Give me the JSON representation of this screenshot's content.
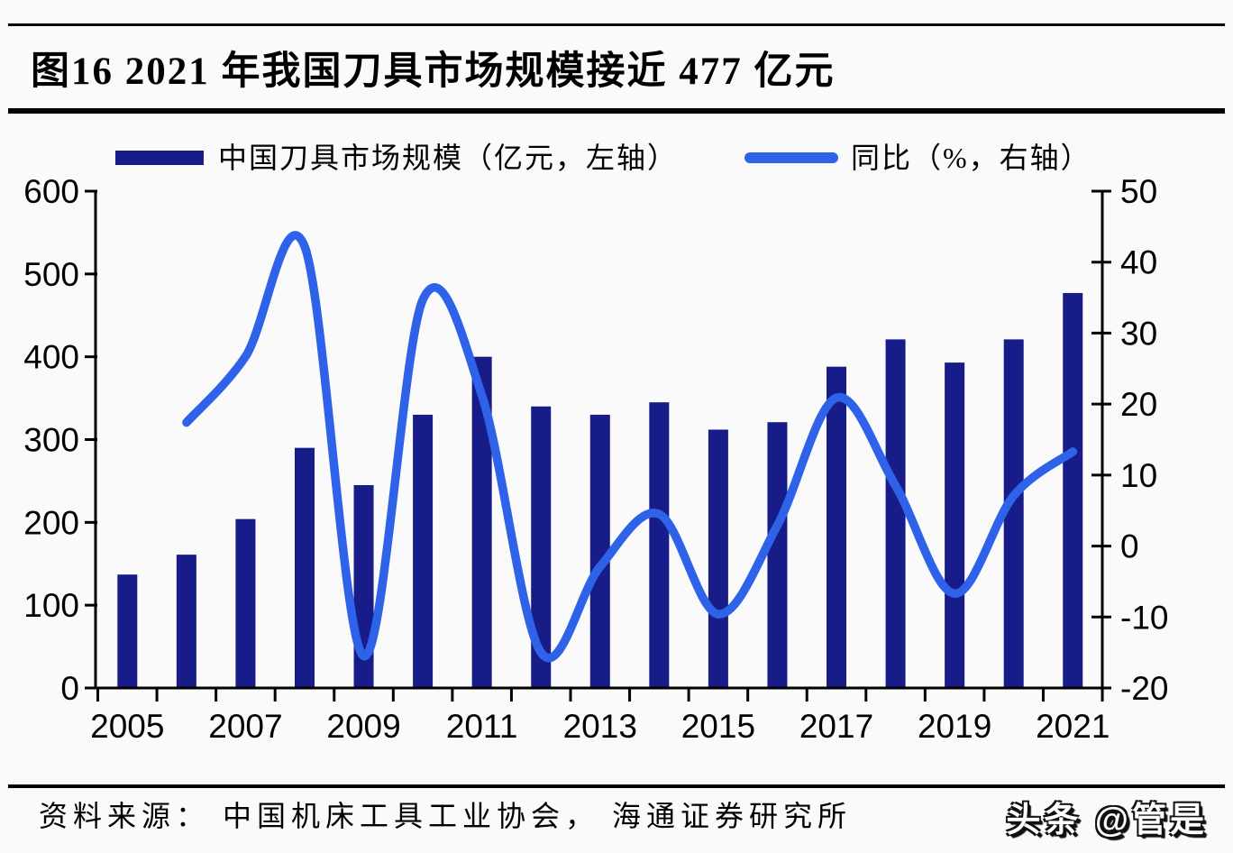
{
  "page": {
    "title": "图16 2021 年我国刀具市场规模接近 477 亿元",
    "source": "资料来源： 中国机床工具工业协会， 海通证券研究所",
    "watermark": "头条 @管是"
  },
  "legend": {
    "bar_label": "中国刀具市场规模（亿元，左轴）",
    "line_label": "同比（%，右轴）"
  },
  "colors": {
    "bar": "#171c88",
    "line": "#2e62e8",
    "axis": "#000000",
    "background": "#fafafb"
  },
  "chart_data": {
    "type": "bar+line",
    "title": "图16 2021 年我国刀具市场规模接近 477 亿元",
    "categories": [
      "2005",
      "2006",
      "2007",
      "2008",
      "2009",
      "2010",
      "2011",
      "2012",
      "2013",
      "2014",
      "2015",
      "2016",
      "2017",
      "2018",
      "2019",
      "2020",
      "2021"
    ],
    "series": [
      {
        "name": "中国刀具市场规模（亿元，左轴）",
        "type": "bar",
        "axis": "left",
        "unit": "亿元",
        "values": [
          137,
          161,
          204,
          290,
          245,
          330,
          400,
          340,
          330,
          345,
          312,
          321,
          388,
          421,
          393,
          421,
          477
        ]
      },
      {
        "name": "同比（%，右轴）",
        "type": "line",
        "axis": "right",
        "unit": "%",
        "values": [
          null,
          17.4,
          26.7,
          42.2,
          -15.5,
          34.7,
          21.2,
          -15.0,
          -2.9,
          4.5,
          -9.6,
          2.9,
          20.9,
          8.5,
          -6.7,
          7.1,
          13.3
        ]
      }
    ],
    "left_axis": {
      "min": 0,
      "max": 600,
      "step": 100,
      "tick_labels": [
        "0",
        "100",
        "200",
        "300",
        "400",
        "500",
        "600"
      ]
    },
    "right_axis": {
      "min": -20,
      "max": 50,
      "step": 10,
      "tick_labels": [
        "-20",
        "-10",
        "0",
        "10",
        "20",
        "30",
        "40",
        "50"
      ]
    },
    "x_axis": {
      "tick_labels": [
        "2005",
        "2007",
        "2009",
        "2011",
        "2013",
        "2015",
        "2017",
        "2019",
        "2021"
      ]
    },
    "grid": false,
    "legend_position": "top"
  }
}
